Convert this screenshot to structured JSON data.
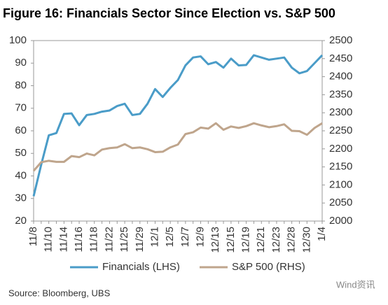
{
  "chart_data": {
    "type": "line",
    "title": "Figure 16: Financials Sector Since Election vs. S&P 500",
    "source": "Source:  Bloomberg, UBS",
    "watermark": "Wind资讯",
    "categories": [
      "11/8",
      null,
      "11/10",
      null,
      "11/14",
      null,
      "11/16",
      null,
      "11/18",
      null,
      "11/22",
      null,
      "11/25",
      null,
      "11/29",
      null,
      "12/1",
      null,
      "12/5",
      null,
      "12/7",
      null,
      "12/9",
      null,
      "12/13",
      null,
      "12/15",
      null,
      "12/19",
      null,
      "12/21",
      null,
      "12/23",
      null,
      "12/28",
      null,
      "12/30",
      null,
      "1/4"
    ],
    "series": [
      {
        "name": "Financials (LHS)",
        "color": "#4a9cc8",
        "axis": "y",
        "values": [
          31,
          45,
          58,
          59,
          67.5,
          67.7,
          62.5,
          67,
          67.5,
          68.5,
          69,
          71,
          72,
          67,
          67.5,
          72,
          78.5,
          75,
          79,
          82.5,
          89,
          92.5,
          93,
          89.5,
          90.5,
          88,
          92,
          89,
          89.2,
          93.5,
          92.5,
          91.5,
          92,
          92.5,
          88,
          85.5,
          86.5,
          90,
          93.5
        ]
      },
      {
        "name": "S&P 500 (RHS)",
        "color": "#bfa58c",
        "axis": "y2",
        "values": [
          2139,
          2163,
          2167,
          2164,
          2164,
          2180,
          2177,
          2187,
          2182,
          2198,
          2202,
          2204,
          2213,
          2202,
          2204,
          2199,
          2191,
          2192,
          2204,
          2212,
          2241,
          2246,
          2259,
          2256,
          2271,
          2253,
          2262,
          2258,
          2263,
          2271,
          2265,
          2260,
          2263,
          2268,
          2250,
          2249,
          2239,
          2258,
          2271
        ]
      }
    ],
    "ylim": [
      20,
      100
    ],
    "yticks": [
      20,
      30,
      40,
      50,
      60,
      70,
      80,
      90,
      100
    ],
    "y2lim": [
      2000,
      2500
    ],
    "y2ticks": [
      2000,
      2050,
      2100,
      2150,
      2200,
      2250,
      2300,
      2350,
      2400,
      2450,
      2500
    ],
    "grid": false,
    "legend": "bottom"
  }
}
